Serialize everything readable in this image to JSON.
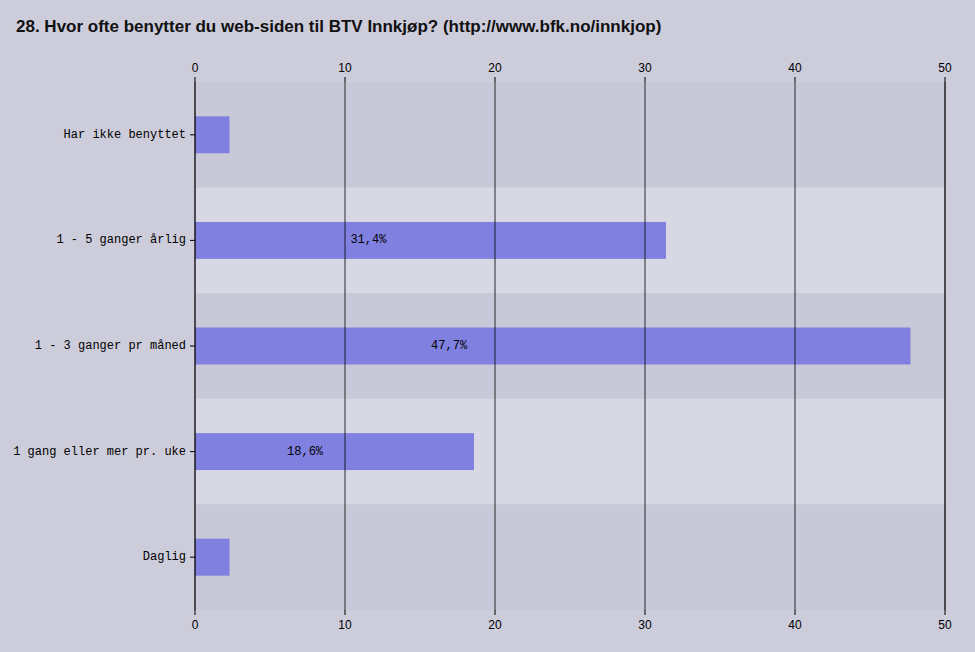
{
  "chart_data": {
    "type": "bar",
    "orientation": "horizontal",
    "title": "28. Hvor ofte benytter du web-siden til BTV Innkjøp? (http://www.bfk.no/innkjop)",
    "categories": [
      "Har ikke benyttet",
      "1 - 5 ganger årlig",
      "1 - 3 ganger pr måned",
      "1 gang eller mer pr. uke",
      "Daglig"
    ],
    "values": [
      2.3,
      31.4,
      47.7,
      18.6,
      2.3
    ],
    "value_labels": [
      null,
      "31,4%",
      "47,7%",
      "18,6%",
      null
    ],
    "data_labels": true,
    "color": "#8080e0",
    "xlim": [
      0,
      50
    ],
    "xticks": [
      0,
      10,
      20,
      30,
      40,
      50
    ],
    "grid": true
  }
}
